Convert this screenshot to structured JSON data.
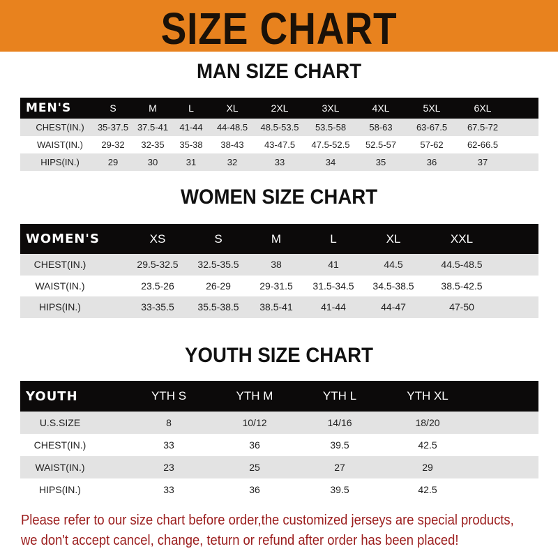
{
  "title": "SIZE CHART",
  "colors": {
    "banner": "#e8821e",
    "header_bg": "#0c0a0a",
    "stripe": "#e3e3e3",
    "note": "#9b1c1c"
  },
  "tables": [
    {
      "title": "MAN SIZE CHART",
      "header_label": "MEN'S",
      "columns": [
        "S",
        "M",
        "L",
        "XL",
        "2XL",
        "3XL",
        "4XL",
        "5XL",
        "6XL"
      ],
      "rows": [
        {
          "label": "CHEST(IN.)",
          "values": [
            "35-37.5",
            "37.5-41",
            "41-44",
            "44-48.5",
            "48.5-53.5",
            "53.5-58",
            "58-63",
            "63-67.5",
            "67.5-72"
          ]
        },
        {
          "label": "WAIST(IN.)",
          "values": [
            "29-32",
            "32-35",
            "35-38",
            "38-43",
            "43-47.5",
            "47.5-52.5",
            "52.5-57",
            "57-62",
            "62-66.5"
          ]
        },
        {
          "label": "HIPS(IN.)",
          "values": [
            "29",
            "30",
            "31",
            "32",
            "33",
            "34",
            "35",
            "36",
            "37"
          ]
        }
      ]
    },
    {
      "title": "WOMEN SIZE CHART",
      "header_label": "WOMEN'S",
      "columns": [
        "XS",
        "S",
        "M",
        "L",
        "XL",
        "XXL"
      ],
      "rows": [
        {
          "label": "CHEST(IN.)",
          "values": [
            "29.5-32.5",
            "32.5-35.5",
            "38",
            "41",
            "44.5",
            "44.5-48.5"
          ]
        },
        {
          "label": "WAIST(IN.)",
          "values": [
            "23.5-26",
            "26-29",
            "29-31.5",
            "31.5-34.5",
            "34.5-38.5",
            "38.5-42.5"
          ]
        },
        {
          "label": "HIPS(IN.)",
          "values": [
            "33-35.5",
            "35.5-38.5",
            "38.5-41",
            "41-44",
            "44-47",
            "47-50"
          ]
        }
      ]
    },
    {
      "title": "YOUTH SIZE CHART",
      "header_label": "YOUTH",
      "columns": [
        "YTH S",
        "YTH M",
        "YTH L",
        "YTH XL"
      ],
      "rows": [
        {
          "label": "U.S.SIZE",
          "values": [
            "8",
            "10/12",
            "14/16",
            "18/20"
          ]
        },
        {
          "label": "CHEST(IN.)",
          "values": [
            "33",
            "36",
            "39.5",
            "42.5"
          ]
        },
        {
          "label": "WAIST(IN.)",
          "values": [
            "23",
            "25",
            "27",
            "29"
          ]
        },
        {
          "label": "HIPS(IN.)",
          "values": [
            "33",
            "36",
            "39.5",
            "42.5"
          ]
        }
      ]
    }
  ],
  "note": [
    "Please refer to our size chart before order,the customized jerseys are special products,",
    "we don't accept cancel, change, teturn or refund after order has been placed!"
  ]
}
